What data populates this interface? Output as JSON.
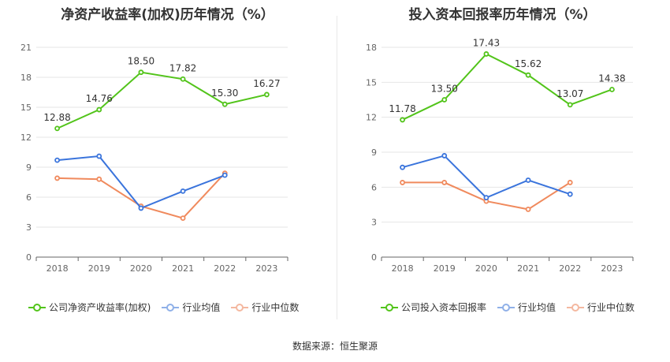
{
  "source": "数据来源：恒生聚源",
  "colors": {
    "company": "#52c41a",
    "avg": "#3a74dc",
    "median": "#f08a5d",
    "legend_avg": "#8fb0e8",
    "legend_median": "#f4b8a0"
  },
  "chart_data": [
    {
      "type": "line",
      "title": "净资产收益率(加权)历年情况（%）",
      "categories": [
        "2018",
        "2019",
        "2020",
        "2021",
        "2022",
        "2023"
      ],
      "yticks": [
        "0",
        "3",
        "6",
        "9",
        "12",
        "15",
        "18",
        "21"
      ],
      "ylim": [
        0,
        21
      ],
      "legend_position": "bottom",
      "series": [
        {
          "name": "公司净资产收益率(加权)",
          "key": "company",
          "values": [
            12.88,
            14.76,
            18.5,
            17.82,
            15.3,
            16.27
          ],
          "labels": [
            "12.88",
            "14.76",
            "18.50",
            "17.82",
            "15.30",
            "16.27"
          ]
        },
        {
          "name": "行业均值",
          "key": "avg",
          "values": [
            9.7,
            10.1,
            4.9,
            6.6,
            8.2,
            null
          ]
        },
        {
          "name": "行业中位数",
          "key": "median",
          "values": [
            7.9,
            7.8,
            5.1,
            3.9,
            8.4,
            null
          ]
        }
      ]
    },
    {
      "type": "line",
      "title": "投入资本回报率历年情况（%）",
      "categories": [
        "2018",
        "2019",
        "2020",
        "2021",
        "2022",
        "2023"
      ],
      "yticks": [
        "0",
        "3",
        "6",
        "9",
        "12",
        "15",
        "18"
      ],
      "ylim": [
        0,
        18
      ],
      "legend_position": "bottom",
      "series": [
        {
          "name": "公司投入资本回报率",
          "key": "company",
          "values": [
            11.78,
            13.5,
            17.43,
            15.62,
            13.07,
            14.38
          ],
          "labels": [
            "11.78",
            "13.50",
            "17.43",
            "15.62",
            "13.07",
            "14.38"
          ]
        },
        {
          "name": "行业均值",
          "key": "avg",
          "values": [
            7.7,
            8.7,
            5.1,
            6.6,
            5.4,
            null
          ]
        },
        {
          "name": "行业中位数",
          "key": "median",
          "values": [
            6.4,
            6.4,
            4.8,
            4.1,
            6.4,
            null
          ]
        }
      ]
    }
  ]
}
